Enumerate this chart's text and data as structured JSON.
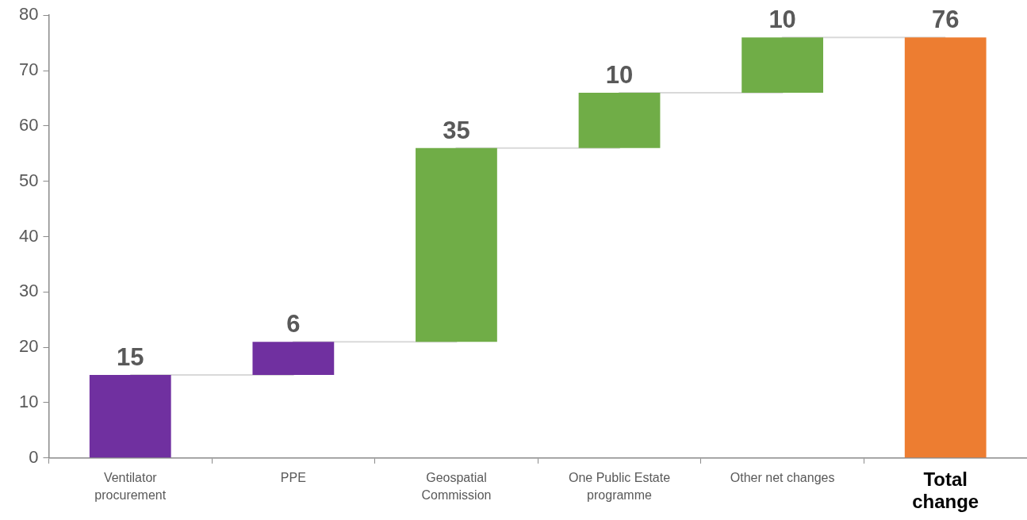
{
  "chart_data": {
    "type": "bar",
    "categories": [
      "Ventilator procurement",
      "PPE",
      "Geospatial Commission",
      "One Public Estate programme",
      "Other net changes",
      "Total change"
    ],
    "series": [
      {
        "values": [
          15,
          6,
          35,
          10,
          10,
          76
        ],
        "base": [
          0,
          15,
          21,
          56,
          66,
          0
        ],
        "colors": [
          "#7030a0",
          "#7030a0",
          "#70ad47",
          "#70ad47",
          "#70ad47",
          "#ed7d31"
        ],
        "value_labels": [
          "15",
          "6",
          "35",
          "10",
          "10",
          "76"
        ]
      },
      {
        "type": "step",
        "color": "#d9d9d9",
        "values": [
          15,
          21,
          56,
          66,
          76,
          76
        ]
      }
    ],
    "ylim": [
      0,
      80
    ],
    "yticks": [
      0,
      10,
      20,
      30,
      40,
      50,
      60,
      70,
      80
    ],
    "grid": false
  }
}
